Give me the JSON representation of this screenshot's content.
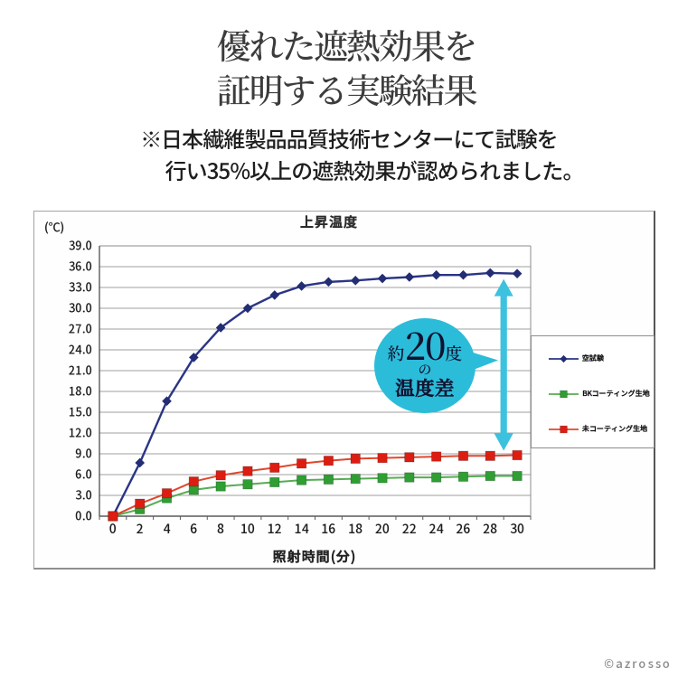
{
  "page": {
    "background": "#ffffff",
    "title": {
      "line1": "優れた遮熱効果を",
      "line2": "証明する実験結果"
    },
    "subtitle": {
      "line1": "※日本繊維製品品質技術センターにて試験を",
      "line2": "行い35%以上の遮熱効果が認められました。"
    },
    "watermark": "©azrosso"
  },
  "annotation": {
    "balloon_text": {
      "line1_small_prefix": "約",
      "line1_big": "20",
      "line1_small_suffix": "度",
      "line2": "の",
      "line3": "温度差"
    },
    "balloon_color": "#2bbcd9",
    "arrow_color": "#3cc2de",
    "text_color": "#121230",
    "arrow_span": {
      "from_series": "空試験",
      "to_series": "未コーティング生地",
      "at_x": 29
    }
  },
  "chart_data": {
    "type": "line",
    "title": "上昇温度",
    "y_unit_label": "(℃)",
    "xlabel": "照射時間(分)",
    "x": [
      0,
      2,
      4,
      6,
      8,
      10,
      12,
      14,
      16,
      18,
      20,
      22,
      24,
      26,
      28,
      30
    ],
    "ylim": [
      0,
      39
    ],
    "ytick_step": 3,
    "ytick_decimals": 1,
    "grid": "horizontal",
    "legend_position": "right",
    "series": [
      {
        "name": "空試験",
        "marker": "diamond",
        "line_color": "#2a3585",
        "marker_color": "#232d74",
        "values": [
          0.0,
          7.7,
          16.6,
          22.9,
          27.2,
          30.0,
          31.9,
          33.2,
          33.8,
          34.0,
          34.3,
          34.5,
          34.8,
          34.8,
          35.1,
          35.0
        ]
      },
      {
        "name": "BKコーティング生地",
        "marker": "square",
        "line_color": "#55ad53",
        "marker_color": "#2f9e33",
        "values": [
          0.0,
          1.0,
          2.6,
          3.8,
          4.3,
          4.6,
          4.9,
          5.2,
          5.3,
          5.4,
          5.5,
          5.6,
          5.6,
          5.7,
          5.8,
          5.8
        ]
      },
      {
        "name": "未コーティング生地",
        "marker": "square",
        "line_color": "#e0472e",
        "marker_color": "#dd1d12",
        "values": [
          0.0,
          1.8,
          3.3,
          5.0,
          5.9,
          6.5,
          7.0,
          7.6,
          8.0,
          8.3,
          8.4,
          8.5,
          8.6,
          8.7,
          8.7,
          8.8
        ]
      }
    ]
  }
}
